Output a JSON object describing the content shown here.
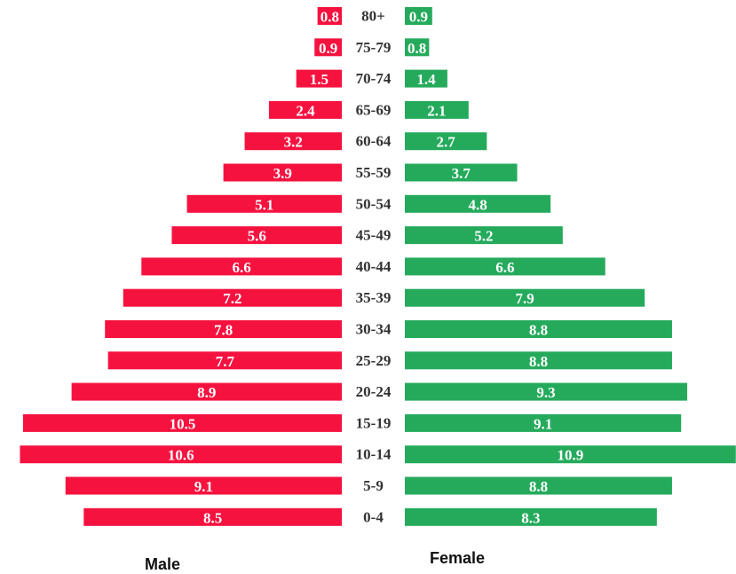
{
  "chart_data": {
    "type": "bar",
    "categories": [
      "80+",
      "75-79",
      "70-74",
      "65-69",
      "60-64",
      "55-59",
      "50-54",
      "45-49",
      "40-44",
      "35-39",
      "30-34",
      "25-29",
      "20-24",
      "15-19",
      "10-14",
      "5-9",
      "0-4"
    ],
    "series": [
      {
        "name": "Male",
        "color": "#f5123f",
        "values": [
          0.8,
          0.9,
          1.5,
          2.4,
          3.2,
          3.9,
          5.1,
          5.6,
          6.6,
          7.2,
          7.8,
          7.7,
          8.9,
          10.5,
          10.6,
          9.1,
          8.5
        ]
      },
      {
        "name": "Female",
        "color": "#25aa5c",
        "values": [
          0.9,
          0.8,
          1.4,
          2.1,
          2.7,
          3.7,
          4.8,
          5.2,
          6.6,
          7.9,
          8.8,
          8.8,
          9.3,
          9.1,
          10.9,
          8.8,
          8.3
        ]
      }
    ]
  }
}
